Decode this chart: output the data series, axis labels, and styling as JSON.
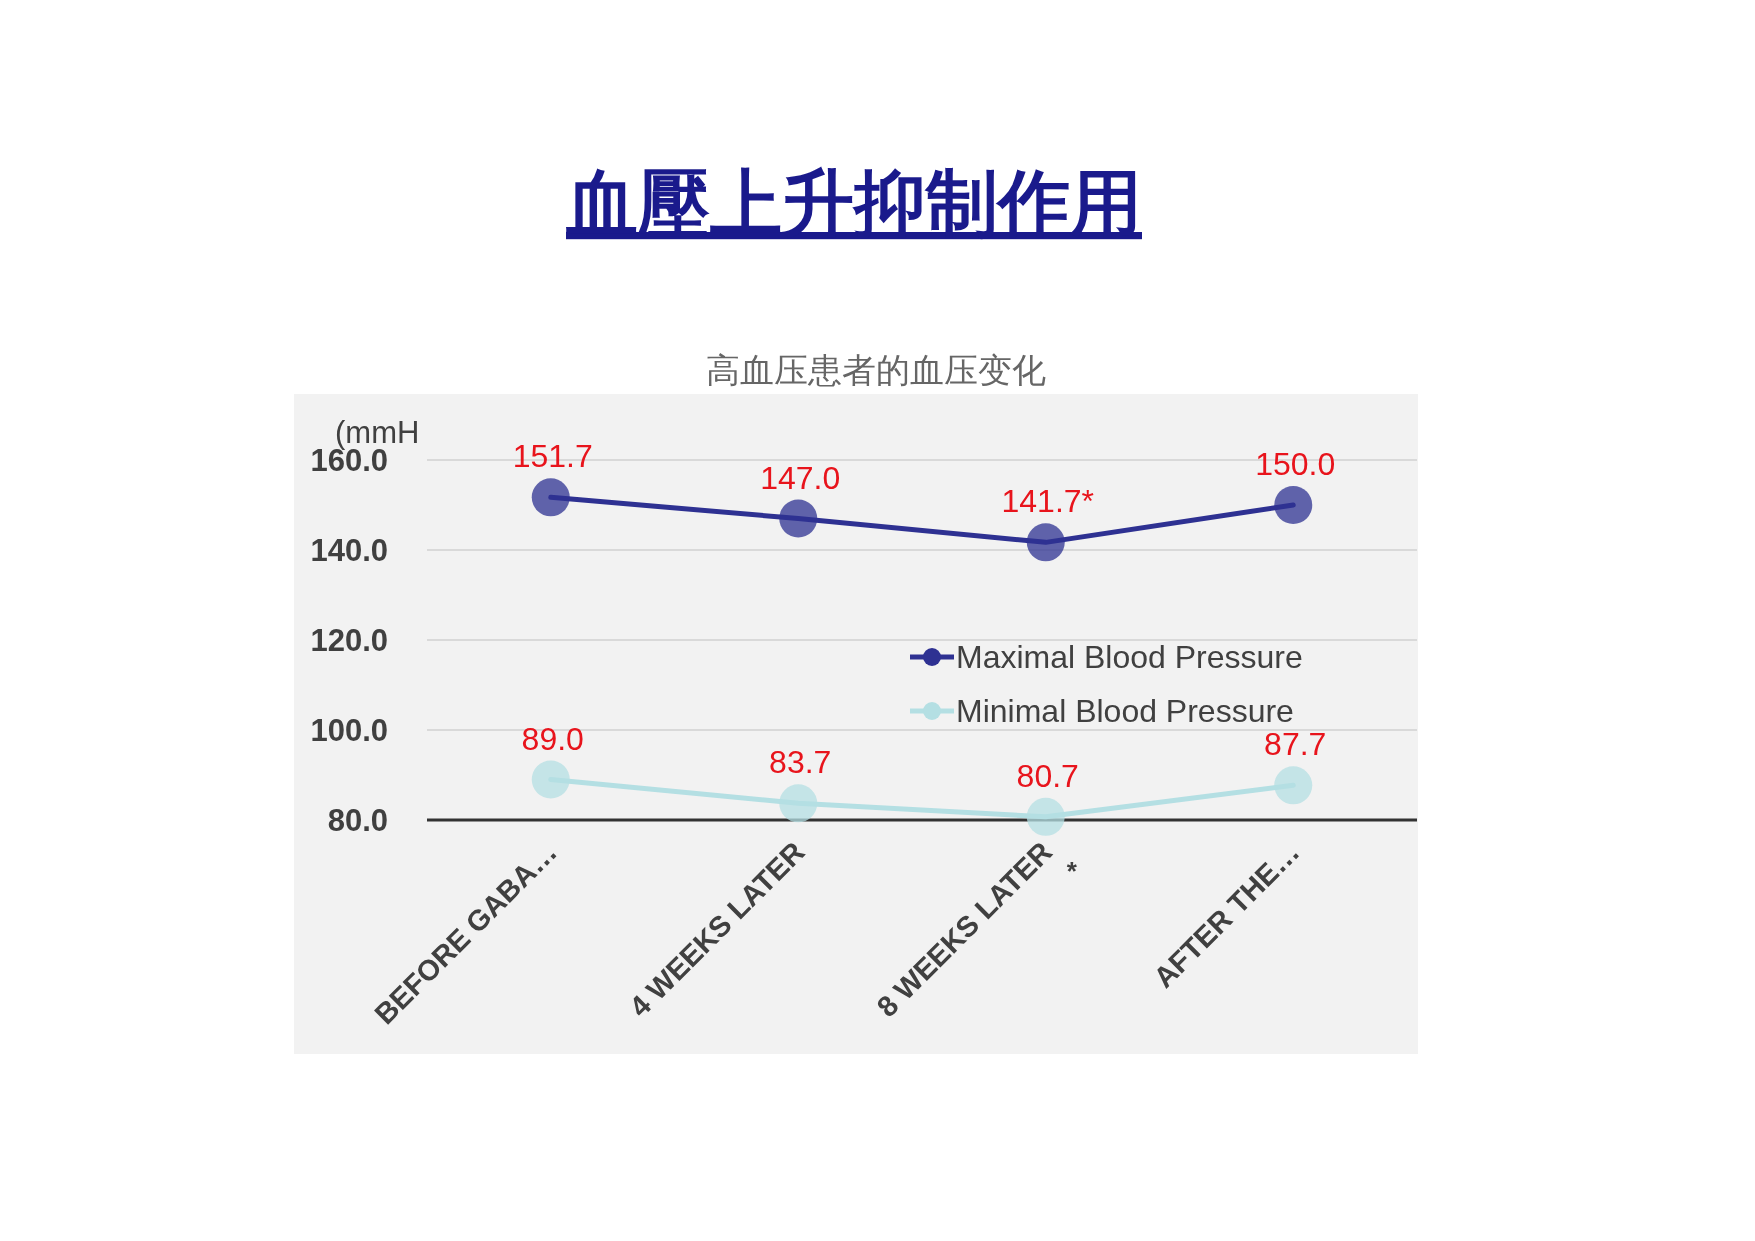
{
  "chart_data": {
    "type": "line",
    "title": "血壓上升抑制作用",
    "subtitle": "高血压患者的血压变化",
    "ylabel": "(mmH",
    "categories": [
      "BEFORE GABA…",
      "4 WEEKS LATER",
      "8 WEEKS LATER",
      "AFTER THE…"
    ],
    "series": [
      {
        "name": "Maximal Blood Pressure",
        "color": "#2e3192",
        "values": [
          151.7,
          147.0,
          141.7,
          150.0
        ],
        "value_labels": [
          "151.7",
          "147.0",
          "141.7*",
          "150.0"
        ]
      },
      {
        "name": "Minimal Blood Pressure",
        "color": "#b4dfe3",
        "values": [
          89.0,
          83.7,
          80.7,
          87.7
        ],
        "value_labels": [
          "89.0",
          "83.7",
          "80.7",
          "87.7"
        ]
      }
    ],
    "ylim": [
      80,
      160
    ],
    "yticks": [
      {
        "value": 80,
        "label": "80.0"
      },
      {
        "value": 100,
        "label": "100.0"
      },
      {
        "value": 120,
        "label": "120.0"
      },
      {
        "value": 140,
        "label": "140.0"
      },
      {
        "value": 160,
        "label": "160.0"
      }
    ],
    "annotations": [
      "*"
    ],
    "grid": "y",
    "legend": "right",
    "marker": "circle"
  }
}
